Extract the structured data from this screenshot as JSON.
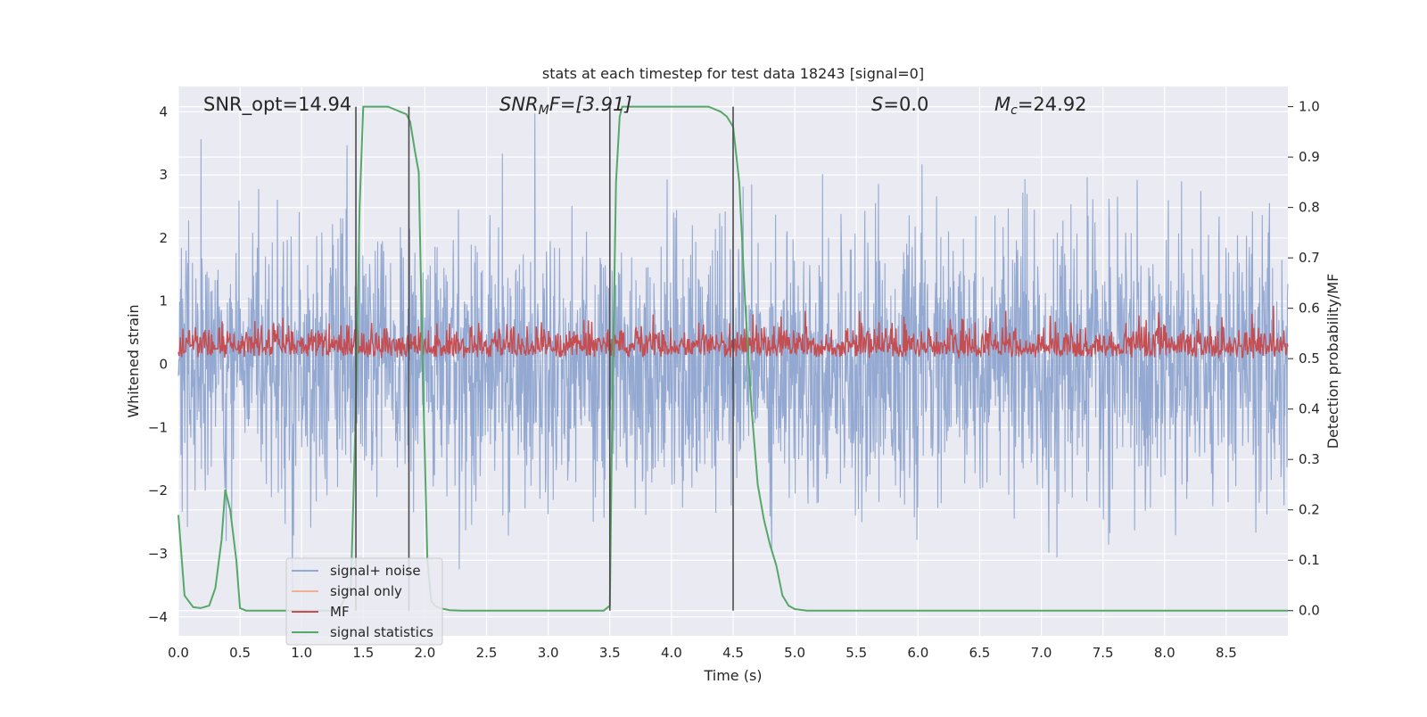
{
  "chart_data": {
    "type": "line",
    "title": "stats at each timestep for test data 18243 [signal=0]",
    "xlabel": "Time (s)",
    "ylabel_left": "Whitened strain",
    "ylabel_right": "Detection probability/MF",
    "xlim": [
      0,
      9.0
    ],
    "ylim_left": [
      -4.3,
      4.4
    ],
    "ylim_right": [
      -0.05,
      1.04
    ],
    "xticks": [
      0.0,
      0.5,
      1.0,
      1.5,
      2.0,
      2.5,
      3.0,
      3.5,
      4.0,
      4.5,
      5.0,
      5.5,
      6.0,
      6.5,
      7.0,
      7.5,
      8.0,
      8.5
    ],
    "xtick_labels": [
      "0.0",
      "0.5",
      "1.0",
      "1.5",
      "2.0",
      "2.5",
      "3.0",
      "3.5",
      "4.0",
      "4.5",
      "5.0",
      "5.5",
      "6.0",
      "6.5",
      "7.0",
      "7.5",
      "8.0",
      "8.5"
    ],
    "yticks_left": [
      -4,
      -3,
      -2,
      -1,
      0,
      1,
      2,
      3,
      4
    ],
    "ytick_labels_left": [
      "−4",
      "−3",
      "−2",
      "−1",
      "0",
      "1",
      "2",
      "3",
      "4"
    ],
    "yticks_right": [
      0.0,
      0.1,
      0.2,
      0.3,
      0.4,
      0.5,
      0.6,
      0.7,
      0.8,
      0.9,
      1.0
    ],
    "ytick_labels_right": [
      "0.0",
      "0.1",
      "0.2",
      "0.3",
      "0.4",
      "0.5",
      "0.6",
      "0.7",
      "0.8",
      "0.9",
      "1.0"
    ],
    "grid": true,
    "legend_position": "lower-left",
    "annotations": {
      "snr_opt": "SNR_opt=14.94",
      "snr_mf_main": "SNR",
      "snr_mf_sub": "M",
      "snr_mf_rest": "F=[3.91]",
      "s_main": "S",
      "s_rest": "=0.0",
      "mc_main": "M",
      "mc_sub": "c",
      "mc_rest": "=24.92"
    },
    "series": [
      {
        "name": "signal+ noise",
        "axis": "left",
        "color": "#94a9d1",
        "style": "noise",
        "duration_s": 9.0,
        "typical_range": [
          -2.5,
          2.5
        ],
        "extreme_range": [
          -3.8,
          4.0
        ]
      },
      {
        "name": "signal only",
        "axis": "left",
        "color": "#eeb195",
        "style": "hidden"
      },
      {
        "name": "MF",
        "axis": "right",
        "color": "#c44e52",
        "style": "noise",
        "typical_range": [
          0.5,
          0.58
        ],
        "extreme_range": [
          0.5,
          0.62
        ]
      },
      {
        "name": "signal statistics",
        "axis": "right",
        "color": "#55a868",
        "style": "line",
        "x": [
          0.0,
          0.05,
          0.12,
          0.18,
          0.25,
          0.3,
          0.35,
          0.38,
          0.42,
          0.47,
          0.5,
          0.55,
          0.6,
          1.2,
          1.3,
          1.4,
          1.44,
          1.47,
          1.5,
          1.6,
          1.7,
          1.8,
          1.85,
          1.88,
          1.92,
          1.95,
          1.98,
          2.02,
          2.05,
          2.08,
          2.12,
          2.2,
          2.3,
          2.5,
          3.0,
          3.45,
          3.5,
          3.52,
          3.55,
          3.58,
          3.6,
          4.0,
          4.3,
          4.4,
          4.45,
          4.5,
          4.55,
          4.6,
          4.65,
          4.7,
          4.75,
          4.8,
          4.85,
          4.9,
          4.95,
          5.0,
          5.1,
          5.5,
          6.0,
          7.0,
          8.0,
          9.0
        ],
        "y": [
          0.19,
          0.03,
          0.007,
          0.005,
          0.01,
          0.045,
          0.14,
          0.24,
          0.2,
          0.1,
          0.005,
          0.0,
          0.0,
          0.0,
          0.0,
          0.05,
          0.4,
          0.8,
          1.0,
          1.0,
          1.0,
          0.99,
          0.985,
          0.97,
          0.91,
          0.87,
          0.5,
          0.1,
          0.02,
          0.01,
          0.005,
          0.001,
          0.0,
          0.0,
          0.0,
          0.0,
          0.01,
          0.4,
          0.85,
          0.98,
          1.0,
          1.0,
          1.0,
          0.99,
          0.98,
          0.96,
          0.85,
          0.6,
          0.4,
          0.25,
          0.18,
          0.13,
          0.09,
          0.03,
          0.01,
          0.003,
          0.0,
          0.0,
          0.0,
          0.0,
          0.0,
          0.0
        ]
      }
    ],
    "vertical_markers": [
      {
        "x": 1.44,
        "y_from": 0.0,
        "y_to": 1.0,
        "color": "#4c4c4c"
      },
      {
        "x": 1.87,
        "y_from": 0.0,
        "y_to": 1.0,
        "color": "#4c4c4c"
      },
      {
        "x": 3.5,
        "y_from": 0.0,
        "y_to": 1.0,
        "color": "#4c4c4c"
      },
      {
        "x": 4.5,
        "y_from": 0.0,
        "y_to": 1.0,
        "color": "#4c4c4c"
      }
    ]
  }
}
